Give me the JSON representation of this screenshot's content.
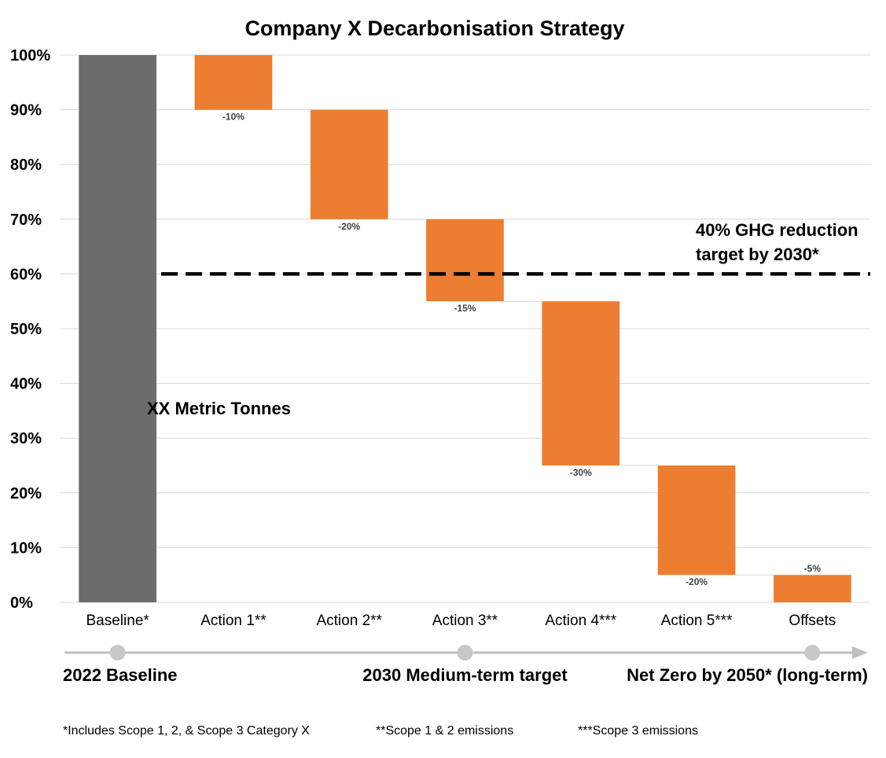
{
  "chart_data": {
    "type": "bar",
    "subtype": "waterfall",
    "title": "Company X Decarbonisation Strategy",
    "categories": [
      "Baseline*",
      "Action 1**",
      "Action 2**",
      "Action 3**",
      "Action 4***",
      "Action 5***",
      "Offsets"
    ],
    "values": [
      100,
      -10,
      -20,
      -15,
      -30,
      -20,
      -5
    ],
    "data_labels": [
      "",
      "-10%",
      "-20%",
      "-15%",
      "-30%",
      "-20%",
      "-5%"
    ],
    "y_ticks": [
      "0%",
      "10%",
      "20%",
      "30%",
      "40%",
      "50%",
      "60%",
      "70%",
      "80%",
      "90%",
      "100%"
    ],
    "ylim": [
      0,
      100
    ],
    "grid": true,
    "colors": {
      "baseline": "#6b6d6a",
      "reduction": "#ed7d31",
      "gridline": "#d9d9d9",
      "axis_arrow": "#bfbfbf",
      "milestone": "#c8c8c8"
    },
    "annotations": {
      "baseline_label": "XX Metric Tonnes",
      "target_value": 60,
      "target_text": [
        "40% GHG reduction",
        "target by 2030*"
      ]
    }
  },
  "timeline": {
    "milestones": [
      {
        "label": "2022 Baseline",
        "category_index": 0
      },
      {
        "label": "2030 Medium-term target",
        "category_index": 3
      },
      {
        "label": "Net Zero by 2050* (long-term)",
        "category_index": 6
      }
    ]
  },
  "footnotes": [
    "*Includes Scope 1, 2, & Scope 3 Category X",
    "**Scope 1 & 2 emissions",
    "***Scope 3 emissions"
  ]
}
